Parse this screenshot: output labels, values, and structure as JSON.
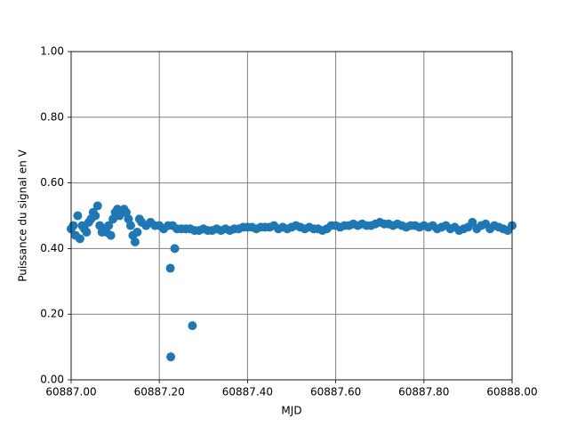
{
  "chart_data": {
    "type": "scatter",
    "x_label": "MJD",
    "y_label": "Puissance du signal en V",
    "color": "#1f77b4",
    "grid": true,
    "xlim": [
      60887.0,
      60888.0
    ],
    "ylim": [
      0,
      1
    ],
    "xticks": [
      {
        "value": 60887.0,
        "label": "60887.00"
      },
      {
        "value": 60887.2,
        "label": "60887.20"
      },
      {
        "value": 60887.4,
        "label": "60887.40"
      },
      {
        "value": 60887.6,
        "label": "60887.60"
      },
      {
        "value": 60887.8,
        "label": "60887.80"
      },
      {
        "value": 60888.0,
        "label": "60888.00"
      }
    ],
    "yticks": [
      {
        "value": 0,
        "label": "0.00"
      },
      {
        "value": 0.2,
        "label": "0.20"
      },
      {
        "value": 0.4,
        "label": "0.40"
      },
      {
        "value": 0.6,
        "label": "0.60"
      },
      {
        "value": 0.8,
        "label": "0.80"
      },
      {
        "value": 1,
        "label": "1.00"
      }
    ],
    "x": [
      60887.0,
      60887.005,
      60887.01,
      60887.015,
      60887.02,
      60887.025,
      60887.03,
      60887.035,
      60887.04,
      60887.045,
      60887.05,
      60887.055,
      60887.06,
      60887.065,
      60887.07,
      60887.075,
      60887.08,
      60887.085,
      60887.09,
      60887.095,
      60887.1,
      60887.105,
      60887.11,
      60887.115,
      60887.12,
      60887.125,
      60887.13,
      60887.135,
      60887.14,
      60887.145,
      60887.15,
      60887.155,
      60887.16,
      60887.17,
      60887.18,
      60887.19,
      60887.2,
      60887.21,
      60887.22,
      60887.225,
      60887.226,
      60887.23,
      60887.235,
      60887.24,
      60887.25,
      60887.26,
      60887.27,
      60887.275,
      60887.28,
      60887.29,
      60887.3,
      60887.31,
      60887.32,
      60887.33,
      60887.34,
      60887.35,
      60887.36,
      60887.37,
      60887.38,
      60887.39,
      60887.4,
      60887.41,
      60887.42,
      60887.43,
      60887.44,
      60887.45,
      60887.46,
      60887.47,
      60887.48,
      60887.49,
      60887.5,
      60887.51,
      60887.52,
      60887.53,
      60887.54,
      60887.55,
      60887.56,
      60887.57,
      60887.58,
      60887.59,
      60887.6,
      60887.61,
      60887.62,
      60887.63,
      60887.64,
      60887.65,
      60887.66,
      60887.67,
      60887.68,
      60887.69,
      60887.7,
      60887.71,
      60887.72,
      60887.73,
      60887.74,
      60887.75,
      60887.76,
      60887.77,
      60887.78,
      60887.79,
      60887.8,
      60887.81,
      60887.82,
      60887.83,
      60887.84,
      60887.85,
      60887.86,
      60887.87,
      60887.88,
      60887.89,
      60887.9,
      60887.91,
      60887.92,
      60887.93,
      60887.94,
      60887.95,
      60887.96,
      60887.97,
      60887.98,
      60887.99,
      60888.0
    ],
    "values": [
      0.46,
      0.47,
      0.44,
      0.5,
      0.43,
      0.47,
      0.46,
      0.45,
      0.48,
      0.49,
      0.51,
      0.5,
      0.53,
      0.47,
      0.45,
      0.46,
      0.45,
      0.47,
      0.44,
      0.49,
      0.51,
      0.52,
      0.5,
      0.51,
      0.52,
      0.51,
      0.49,
      0.47,
      0.44,
      0.42,
      0.45,
      0.49,
      0.48,
      0.47,
      0.48,
      0.47,
      0.47,
      0.46,
      0.47,
      0.34,
      0.07,
      0.47,
      0.4,
      0.46,
      0.46,
      0.46,
      0.46,
      0.165,
      0.455,
      0.455,
      0.46,
      0.455,
      0.455,
      0.46,
      0.455,
      0.46,
      0.455,
      0.46,
      0.46,
      0.465,
      0.465,
      0.465,
      0.46,
      0.465,
      0.465,
      0.465,
      0.47,
      0.46,
      0.465,
      0.46,
      0.465,
      0.47,
      0.465,
      0.46,
      0.465,
      0.46,
      0.46,
      0.455,
      0.46,
      0.47,
      0.47,
      0.465,
      0.47,
      0.47,
      0.475,
      0.47,
      0.475,
      0.47,
      0.47,
      0.475,
      0.48,
      0.475,
      0.475,
      0.47,
      0.475,
      0.47,
      0.465,
      0.47,
      0.47,
      0.465,
      0.47,
      0.465,
      0.47,
      0.46,
      0.465,
      0.47,
      0.46,
      0.465,
      0.455,
      0.46,
      0.465,
      0.48,
      0.46,
      0.47,
      0.475,
      0.46,
      0.47,
      0.465,
      0.46,
      0.455,
      0.47
    ]
  }
}
